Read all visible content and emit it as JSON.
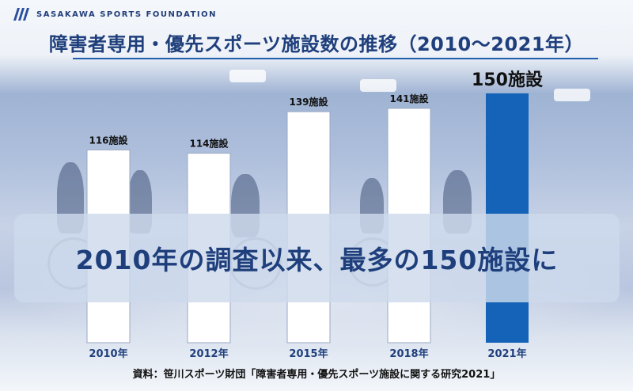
{
  "brand": {
    "logo_text": "SASAKAWA SPORTS FOUNDATION",
    "logo_icon": "stripes-logo-icon"
  },
  "colors": {
    "title": "#1f3f7c",
    "bar_regular": "#ffffff",
    "bar_highlight": "#1463b8",
    "accent_rule": "#1f5fae"
  },
  "chart_data": {
    "type": "bar",
    "title": "障害者専用・優先スポーツ施設数の推移（2010～2021年）",
    "categories": [
      "2010年",
      "2012年",
      "2015年",
      "2018年",
      "2021年"
    ],
    "values": [
      116,
      114,
      139,
      141,
      150
    ],
    "data_labels": [
      "116施設",
      "114施設",
      "139施設",
      "141施設",
      "150施設"
    ],
    "highlight_category": "2021年",
    "xlabel": "",
    "ylabel": "",
    "ylim": [
      0,
      150
    ],
    "grid": false,
    "legend": "none"
  },
  "banner": {
    "text": "2010年の調査以来、最多の150施設に"
  },
  "source": {
    "text": "資料：笹川スポーツ財団「障害者専用・優先スポーツ施設に関する研究2021」"
  }
}
